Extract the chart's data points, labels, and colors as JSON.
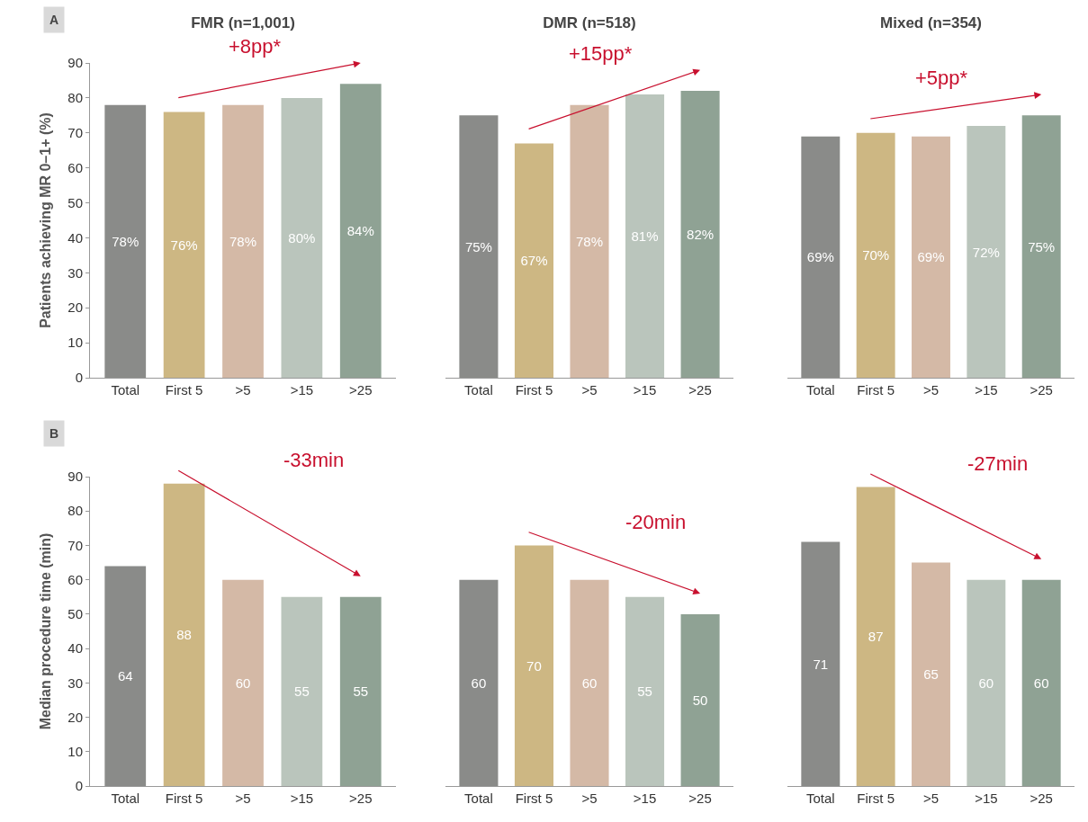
{
  "chart_data": [
    {
      "type": "bar",
      "title": "FMR (n=1,001)",
      "ylabel": "Patients achieving MR 0–1+ (%)",
      "categories": [
        "Total",
        "First 5",
        ">5",
        ">15",
        ">25"
      ],
      "values": [
        78,
        76,
        78,
        80,
        84
      ],
      "value_labels": [
        "78%",
        "76%",
        "78%",
        "80%",
        "84%"
      ],
      "colors": [
        "#8a8b89",
        "#cdb783",
        "#d4b9a6",
        "#bac5bc",
        "#8fa294"
      ],
      "ylim": [
        0,
        90
      ],
      "yticks": [
        0,
        10,
        20,
        30,
        40,
        50,
        60,
        70,
        80,
        90
      ],
      "annotations": [
        "A",
        "+8pp*"
      ]
    },
    {
      "type": "bar",
      "title": "DMR (n=518)",
      "categories": [
        "Total",
        "First 5",
        ">5",
        ">15",
        ">25"
      ],
      "values": [
        75,
        67,
        78,
        81,
        82
      ],
      "value_labels": [
        "75%",
        "67%",
        "78%",
        "81%",
        "82%"
      ],
      "colors": [
        "#8a8b89",
        "#cdb783",
        "#d4b9a6",
        "#bac5bc",
        "#8fa294"
      ],
      "ylim": [
        0,
        90
      ],
      "yticks": [
        0,
        10,
        20,
        30,
        40,
        50,
        60,
        70,
        80,
        90
      ],
      "tick_labels": "x",
      "annotations": [
        "+15pp*"
      ]
    },
    {
      "type": "bar",
      "title": "Mixed (n=354)",
      "categories": [
        "Total",
        "First 5",
        ">5",
        ">15",
        ">25"
      ],
      "values": [
        69,
        70,
        69,
        72,
        75
      ],
      "value_labels": [
        "69%",
        "70%",
        "69%",
        "72%",
        "75%"
      ],
      "colors": [
        "#8a8b89",
        "#cdb783",
        "#d4b9a6",
        "#bac5bc",
        "#8fa294"
      ],
      "ylim": [
        0,
        90
      ],
      "yticks": [
        0,
        10,
        20,
        30,
        40,
        50,
        60,
        70,
        80,
        90
      ],
      "tick_labels": "x",
      "annotations": [
        "+5pp*"
      ]
    },
    {
      "type": "bar",
      "ylabel": "Median procedure time (min)",
      "categories": [
        "Total",
        "First 5",
        ">5",
        ">15",
        ">25"
      ],
      "values": [
        64,
        88,
        60,
        55,
        55
      ],
      "data_labels": true,
      "colors": [
        "#8a8b89",
        "#cdb783",
        "#d4b9a6",
        "#bac5bc",
        "#8fa294"
      ],
      "ylim": [
        0,
        90
      ],
      "yticks": [
        0,
        10,
        20,
        30,
        40,
        50,
        60,
        70,
        80,
        90
      ],
      "annotations": [
        "B",
        "-33min"
      ]
    },
    {
      "type": "bar",
      "categories": [
        "Total",
        "First 5",
        ">5",
        ">15",
        ">25"
      ],
      "values": [
        60,
        70,
        60,
        55,
        50
      ],
      "data_labels": true,
      "colors": [
        "#8a8b89",
        "#cdb783",
        "#d4b9a6",
        "#bac5bc",
        "#8fa294"
      ],
      "ylim": [
        0,
        90
      ],
      "yticks": [
        0,
        10,
        20,
        30,
        40,
        50,
        60,
        70,
        80,
        90
      ],
      "tick_labels": "x",
      "annotations": [
        "-20min"
      ]
    },
    {
      "type": "bar",
      "categories": [
        "Total",
        "First 5",
        ">5",
        ">15",
        ">25"
      ],
      "values": [
        71,
        87,
        65,
        60,
        60
      ],
      "data_labels": true,
      "colors": [
        "#8a8b89",
        "#cdb783",
        "#d4b9a6",
        "#bac5bc",
        "#8fa294"
      ],
      "ylim": [
        0,
        90
      ],
      "yticks": [
        0,
        10,
        20,
        30,
        40,
        50,
        60,
        70,
        80,
        90
      ],
      "tick_labels": "x",
      "annotations": [
        "-27min"
      ]
    }
  ]
}
